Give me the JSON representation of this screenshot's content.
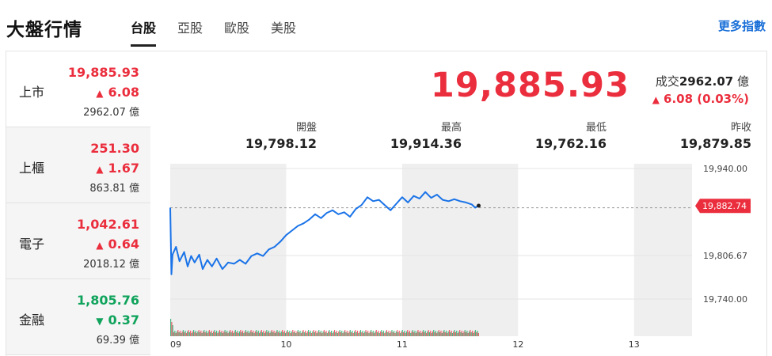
{
  "header": {
    "title": "大盤行情",
    "tabs": [
      {
        "label": "台股",
        "active": true
      },
      {
        "label": "亞股",
        "active": false
      },
      {
        "label": "歐股",
        "active": false
      },
      {
        "label": "美股",
        "active": false
      }
    ],
    "more_link": "更多指數"
  },
  "markets": [
    {
      "name": "上市",
      "price": "19,885.93",
      "change": "6.08",
      "direction": "up",
      "volume": "2962.07 億",
      "selected": true
    },
    {
      "name": "上櫃",
      "price": "251.30",
      "change": "1.67",
      "direction": "up",
      "volume": "863.81 億",
      "selected": false
    },
    {
      "name": "電子",
      "price": "1,042.61",
      "change": "0.64",
      "direction": "up",
      "volume": "2018.12 億",
      "selected": false
    },
    {
      "name": "金融",
      "price": "1,805.76",
      "change": "0.37",
      "direction": "down",
      "volume": "69.39 億",
      "selected": false
    }
  ],
  "quote": {
    "price": "19,885.93",
    "volume_label": "成交",
    "volume_value": "2962.07",
    "volume_unit": "億",
    "change": "6.08 (0.03%)",
    "stats": [
      {
        "label": "開盤",
        "value": "19,798.12"
      },
      {
        "label": "最高",
        "value": "19,914.36"
      },
      {
        "label": "最低",
        "value": "19,762.16"
      },
      {
        "label": "昨收",
        "value": "19,879.85"
      }
    ]
  },
  "colors": {
    "up": "#eb2e3d",
    "down": "#0fa35b",
    "line": "#1a73e8",
    "accent": "#1a6fd8"
  },
  "chart_data": {
    "type": "line",
    "x_ticks": [
      "09",
      "10",
      "11",
      "12",
      "13"
    ],
    "y_ticks": [
      "19,940.00",
      "19,806.67",
      "19,740.00"
    ],
    "ylim": [
      19740.0,
      19940.0
    ],
    "xlim": [
      9.0,
      13.5
    ],
    "previous_close": 19879.85,
    "current_label": "19,882.74",
    "current_value": 19882.74,
    "series": [
      {
        "values": [
          [
            9.0,
            19880
          ],
          [
            9.01,
            19778
          ],
          [
            9.02,
            19808
          ],
          [
            9.05,
            19820
          ],
          [
            9.08,
            19798
          ],
          [
            9.12,
            19812
          ],
          [
            9.15,
            19790
          ],
          [
            9.18,
            19806
          ],
          [
            9.21,
            19796
          ],
          [
            9.25,
            19808
          ],
          [
            9.28,
            19786
          ],
          [
            9.32,
            19800
          ],
          [
            9.36,
            19790
          ],
          [
            9.4,
            19802
          ],
          [
            9.45,
            19786
          ],
          [
            9.5,
            19796
          ],
          [
            9.55,
            19794
          ],
          [
            9.6,
            19800
          ],
          [
            9.65,
            19794
          ],
          [
            9.7,
            19806
          ],
          [
            9.75,
            19810
          ],
          [
            9.8,
            19806
          ],
          [
            9.85,
            19816
          ],
          [
            9.9,
            19820
          ],
          [
            9.95,
            19828
          ],
          [
            10.0,
            19838
          ],
          [
            10.05,
            19845
          ],
          [
            10.1,
            19852
          ],
          [
            10.15,
            19856
          ],
          [
            10.2,
            19862
          ],
          [
            10.25,
            19870
          ],
          [
            10.3,
            19864
          ],
          [
            10.35,
            19872
          ],
          [
            10.4,
            19876
          ],
          [
            10.45,
            19870
          ],
          [
            10.5,
            19873
          ],
          [
            10.55,
            19866
          ],
          [
            10.6,
            19878
          ],
          [
            10.65,
            19884
          ],
          [
            10.7,
            19896
          ],
          [
            10.75,
            19890
          ],
          [
            10.8,
            19892
          ],
          [
            10.85,
            19884
          ],
          [
            10.9,
            19876
          ],
          [
            10.95,
            19886
          ],
          [
            11.0,
            19896
          ],
          [
            11.05,
            19888
          ],
          [
            11.1,
            19898
          ],
          [
            11.15,
            19894
          ],
          [
            11.2,
            19904
          ],
          [
            11.25,
            19895
          ],
          [
            11.3,
            19900
          ],
          [
            11.35,
            19892
          ],
          [
            11.4,
            19890
          ],
          [
            11.45,
            19893
          ],
          [
            11.5,
            19890
          ],
          [
            11.55,
            19888
          ],
          [
            11.6,
            19885
          ],
          [
            11.63,
            19880
          ],
          [
            11.66,
            19883
          ]
        ]
      }
    ]
  }
}
